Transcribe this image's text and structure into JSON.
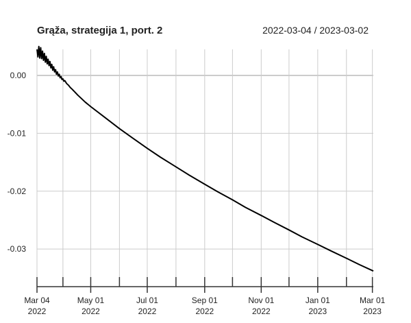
{
  "chart_data": {
    "type": "line",
    "title": "Grąža, strategija 1, port. 2",
    "date_range": "2022-03-04 / 2023-03-02",
    "xlabel": "",
    "ylabel": "",
    "x_range": [
      "2022-03-04",
      "2023-03-02"
    ],
    "ylim": [
      -0.0365,
      0.0045
    ],
    "y_ticks": [
      0.0,
      -0.01,
      -0.02,
      -0.03
    ],
    "y_tick_labels": [
      "0.00",
      "-0.01",
      "-0.02",
      "-0.03"
    ],
    "x_ticks": [
      {
        "date": "2022-03-04",
        "label_month": "Mar 04",
        "label_year": "2022"
      },
      {
        "date": "2022-05-01",
        "label_month": "May 01",
        "label_year": "2022"
      },
      {
        "date": "2022-07-01",
        "label_month": "Jul 01",
        "label_year": "2022"
      },
      {
        "date": "2022-09-01",
        "label_month": "Sep 01",
        "label_year": "2022"
      },
      {
        "date": "2022-11-01",
        "label_month": "Nov 01",
        "label_year": "2022"
      },
      {
        "date": "2023-01-01",
        "label_month": "Jan 01",
        "label_year": "2023"
      },
      {
        "date": "2023-03-01",
        "label_month": "Mar 01",
        "label_year": "2023"
      }
    ],
    "x_minor_ticks": [
      "2022-04-01",
      "2022-06-01",
      "2022-08-01",
      "2022-10-01",
      "2022-12-01",
      "2023-02-01"
    ],
    "grid": true,
    "series": [
      {
        "color": "#000000",
        "points": [
          {
            "x": "2022-03-04",
            "y": 0.0045
          },
          {
            "x": "2022-03-05",
            "y": 0.0032
          },
          {
            "x": "2022-03-06",
            "y": 0.005
          },
          {
            "x": "2022-03-07",
            "y": 0.003
          },
          {
            "x": "2022-03-08",
            "y": 0.0048
          },
          {
            "x": "2022-03-09",
            "y": 0.0029
          },
          {
            "x": "2022-03-10",
            "y": 0.0042
          },
          {
            "x": "2022-03-11",
            "y": 0.0026
          },
          {
            "x": "2022-03-12",
            "y": 0.0038
          },
          {
            "x": "2022-03-13",
            "y": 0.0023
          },
          {
            "x": "2022-03-14",
            "y": 0.0033
          },
          {
            "x": "2022-03-15",
            "y": 0.002
          },
          {
            "x": "2022-03-16",
            "y": 0.0028
          },
          {
            "x": "2022-03-17",
            "y": 0.0017
          },
          {
            "x": "2022-03-18",
            "y": 0.0024
          },
          {
            "x": "2022-03-19",
            "y": 0.0013
          },
          {
            "x": "2022-03-20",
            "y": 0.0019
          },
          {
            "x": "2022-03-21",
            "y": 0.0009
          },
          {
            "x": "2022-03-22",
            "y": 0.0015
          },
          {
            "x": "2022-03-23",
            "y": 0.0006
          },
          {
            "x": "2022-03-24",
            "y": 0.001
          },
          {
            "x": "2022-03-25",
            "y": 0.0002
          },
          {
            "x": "2022-03-26",
            "y": 0.0006
          },
          {
            "x": "2022-03-27",
            "y": -0.0001
          },
          {
            "x": "2022-03-28",
            "y": 0.0002
          },
          {
            "x": "2022-03-29",
            "y": -0.0004
          },
          {
            "x": "2022-03-30",
            "y": -0.0002
          },
          {
            "x": "2022-03-31",
            "y": -0.0007
          },
          {
            "x": "2022-04-01",
            "y": -0.0006
          },
          {
            "x": "2022-04-02",
            "y": -0.001
          },
          {
            "x": "2022-04-03",
            "y": -0.0009
          },
          {
            "x": "2022-04-05",
            "y": -0.0014
          },
          {
            "x": "2022-04-07",
            "y": -0.0017
          },
          {
            "x": "2022-04-09",
            "y": -0.0021
          },
          {
            "x": "2022-04-11",
            "y": -0.0024
          },
          {
            "x": "2022-04-14",
            "y": -0.0029
          },
          {
            "x": "2022-04-17",
            "y": -0.0034
          },
          {
            "x": "2022-04-21",
            "y": -0.004
          },
          {
            "x": "2022-04-25",
            "y": -0.0046
          },
          {
            "x": "2022-05-01",
            "y": -0.0054
          },
          {
            "x": "2022-05-15",
            "y": -0.0071
          },
          {
            "x": "2022-06-01",
            "y": -0.0092
          },
          {
            "x": "2022-06-15",
            "y": -0.0108
          },
          {
            "x": "2022-07-01",
            "y": -0.0126
          },
          {
            "x": "2022-07-15",
            "y": -0.0141
          },
          {
            "x": "2022-08-01",
            "y": -0.0158
          },
          {
            "x": "2022-08-15",
            "y": -0.0172
          },
          {
            "x": "2022-09-01",
            "y": -0.0188
          },
          {
            "x": "2022-09-15",
            "y": -0.0201
          },
          {
            "x": "2022-10-01",
            "y": -0.0215
          },
          {
            "x": "2022-10-15",
            "y": -0.0228
          },
          {
            "x": "2022-11-01",
            "y": -0.0242
          },
          {
            "x": "2022-11-15",
            "y": -0.0254
          },
          {
            "x": "2022-12-01",
            "y": -0.0267
          },
          {
            "x": "2022-12-15",
            "y": -0.0279
          },
          {
            "x": "2023-01-01",
            "y": -0.0292
          },
          {
            "x": "2023-01-15",
            "y": -0.0303
          },
          {
            "x": "2023-02-01",
            "y": -0.0316
          },
          {
            "x": "2023-02-15",
            "y": -0.0327
          },
          {
            "x": "2023-03-02",
            "y": -0.0338
          }
        ]
      }
    ]
  }
}
